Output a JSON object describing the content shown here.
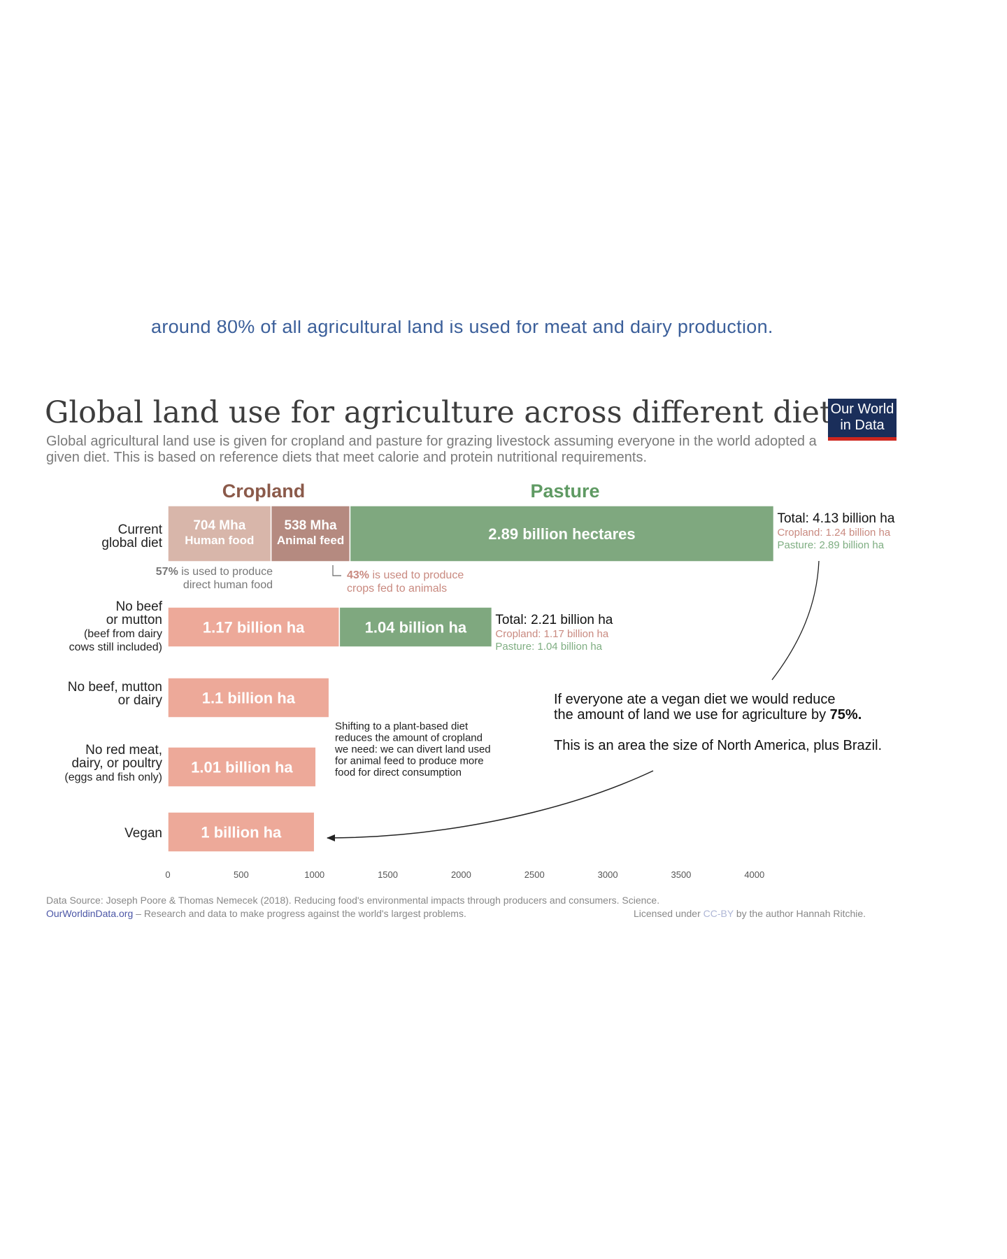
{
  "article": {
    "cutoff_line": "around 80% of all agricultural land is used for meat and dairy production."
  },
  "header": {
    "title": "Global land use for agriculture across different diets",
    "subtitle": "Global agricultural land use is given for cropland and pasture for grazing livestock assuming everyone in the world adopted a given diet. This is based on reference diets that meet calorie and protein nutritional requirements.",
    "logo_line1": "Our World",
    "logo_line2": "in Data"
  },
  "footer": {
    "source": "Data Source: Joseph Poore & Thomas Nemecek (2018). Reducing food's environmental impacts through producers and consumers. Science.",
    "site": "OurWorldinData.org",
    "tagline": " – Research and data to make progress against the world's largest problems.",
    "license_pre": "Licensed under ",
    "license_link": "CC-BY",
    "license_post": " by the author Hannah Ritchie."
  },
  "colors": {
    "cropland_header": "#8b5a4a",
    "pasture_header": "#5f9a63",
    "human_food": "#d8b6aa",
    "animal_feed": "#b58a80",
    "cropland": "#eda999",
    "pasture": "#7fa87f",
    "cropland_text": "#c98a80",
    "pasture_text": "#7fae82"
  },
  "chart_data": {
    "type": "bar",
    "stacked": true,
    "orientation": "horizontal",
    "unit": "Mha",
    "xlim": [
      0,
      4000
    ],
    "xticks": [
      0,
      500,
      1000,
      1500,
      2000,
      2500,
      3000,
      3500,
      4000
    ],
    "column_headers": {
      "cropland": "Cropland",
      "pasture": "Pasture"
    },
    "rows": [
      {
        "label": [
          "Current",
          "global diet"
        ],
        "segments": [
          {
            "kind": "human_food",
            "value": 704,
            "text": [
              "704 Mha",
              "Human food"
            ]
          },
          {
            "kind": "animal_feed",
            "value": 538,
            "text": [
              "538 Mha",
              "Animal feed"
            ]
          },
          {
            "kind": "pasture",
            "value": 2890,
            "text": [
              "2.89 billion hectares"
            ]
          }
        ],
        "total": "Total: 4.13 billion ha",
        "cropland_total": "Cropland: 1.24 billion ha",
        "pasture_total": "Pasture: 2.89 billion ha"
      },
      {
        "label": [
          "No beef",
          "or mutton",
          "(beef from dairy",
          "cows still included)"
        ],
        "segments": [
          {
            "kind": "cropland",
            "value": 1170,
            "text": [
              "1.17 billion ha"
            ]
          },
          {
            "kind": "pasture",
            "value": 1040,
            "text": [
              "1.04 billion ha"
            ]
          }
        ],
        "total": "Total: 2.21 billion ha",
        "cropland_total": "Cropland: 1.17 billion ha",
        "pasture_total": "Pasture: 1.04 billion ha"
      },
      {
        "label": [
          "No beef, mutton",
          "or dairy"
        ],
        "segments": [
          {
            "kind": "cropland",
            "value": 1100,
            "text": [
              "1.1 billion ha"
            ]
          }
        ]
      },
      {
        "label": [
          "No red meat,",
          "dairy, or poultry",
          "(eggs and fish only)"
        ],
        "segments": [
          {
            "kind": "cropland",
            "value": 1010,
            "text": [
              "1.01 billion ha"
            ]
          }
        ]
      },
      {
        "label": [
          "Vegan"
        ],
        "segments": [
          {
            "kind": "cropland",
            "value": 1000,
            "text": [
              "1 billion ha"
            ]
          }
        ]
      }
    ],
    "annotations": {
      "human_share_pct": "57%",
      "human_share_rest": [
        "is used to produce",
        "direct human food"
      ],
      "feed_share_pct": "43%",
      "feed_share_rest": [
        "is used to produce",
        "crops fed to animals"
      ],
      "shift_note": [
        "Shifting to a plant-based diet",
        "reduces the amount of cropland",
        "we need: we can divert land used",
        "for animal feed to produce more",
        "food for direct consumption"
      ],
      "vegan_note_1": [
        "If everyone ate a vegan diet we would reduce",
        "the amount of land we use for agriculture by "
      ],
      "vegan_note_pct": "75%.",
      "vegan_note_2": "This is an area the size of North America, plus Brazil."
    }
  }
}
